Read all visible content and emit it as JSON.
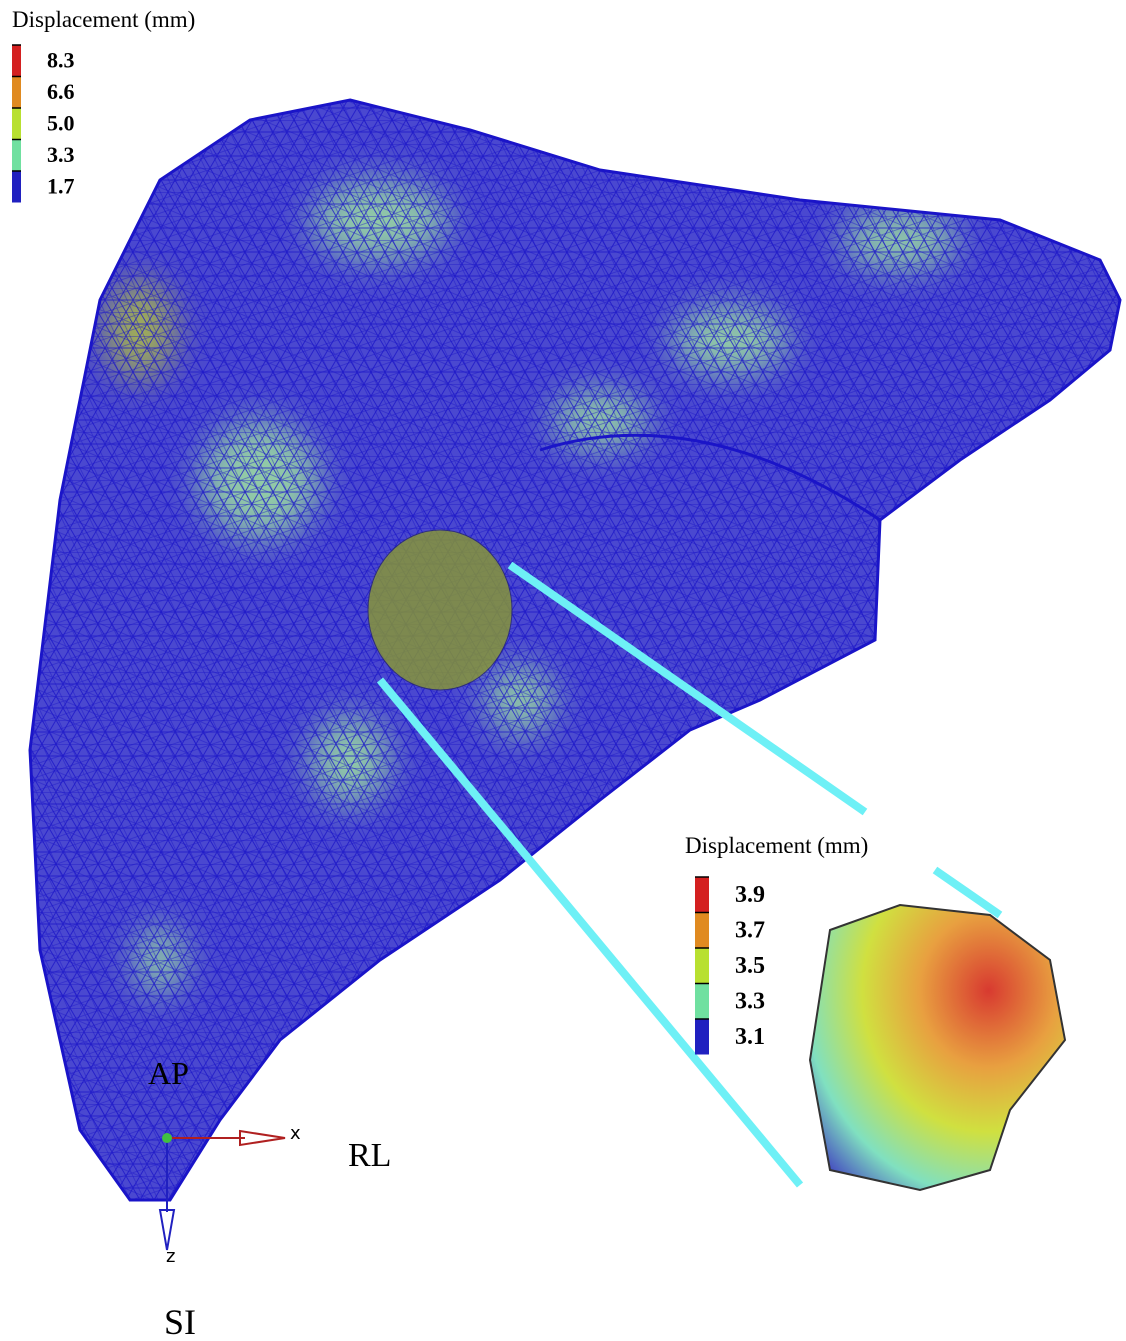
{
  "main_legend": {
    "title": "Displacement (mm)",
    "items": [
      {
        "label": "8.3",
        "color": "#d42020"
      },
      {
        "label": "6.6",
        "color": "#e08a20"
      },
      {
        "label": "5.0",
        "color": "#b8e030"
      },
      {
        "label": "3.3",
        "color": "#70e0a0"
      },
      {
        "label": "1.7",
        "color": "#2020c0"
      }
    ]
  },
  "inset_legend": {
    "title": "Displacement (mm)",
    "items": [
      {
        "label": "3.9",
        "color": "#d42020"
      },
      {
        "label": "3.7",
        "color": "#e08a20"
      },
      {
        "label": "3.5",
        "color": "#b8e030"
      },
      {
        "label": "3.3",
        "color": "#70e0a0"
      },
      {
        "label": "3.1",
        "color": "#2020c0"
      }
    ]
  },
  "axes": {
    "x": "x",
    "z": "z",
    "AP": "AP",
    "RL": "RL",
    "SI": "SI"
  }
}
